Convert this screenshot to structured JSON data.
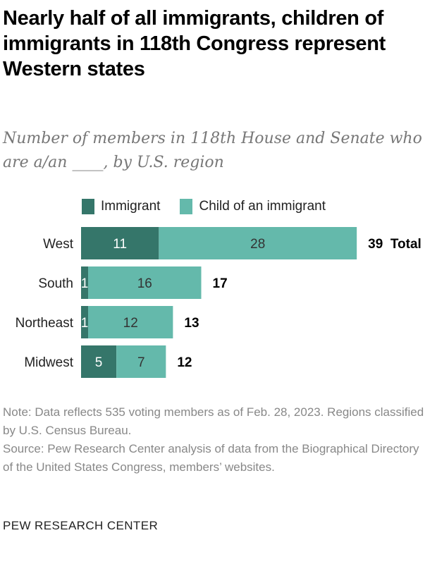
{
  "title": "Nearly half of all immigrants, children of immigrants in 118th Congress represent Western states",
  "subtitle": "Number of members in 118th House and Senate who are a/an ____, by U.S. region",
  "chart_data": {
    "type": "bar",
    "orientation": "horizontal",
    "stacked": true,
    "categories": [
      "West",
      "South",
      "Northeast",
      "Midwest"
    ],
    "series": [
      {
        "name": "Immigrant",
        "values": [
          11,
          1,
          1,
          5
        ],
        "color": "#35766a"
      },
      {
        "name": "Child of an immigrant",
        "values": [
          28,
          16,
          12,
          7
        ],
        "color": "#64b9ab"
      }
    ],
    "totals": [
      39,
      17,
      13,
      12
    ],
    "total_label": "Total",
    "legend": "top",
    "grid": false
  },
  "notes": {
    "note": "Note: Data reflects 535 voting members as of Feb. 28, 2023. Regions classified by U.S. Census Bureau.",
    "source": "Source: Pew Research Center analysis of data from the Biographical Directory of the United States Congress, members’ websites."
  },
  "brand": "PEW RESEARCH CENTER"
}
